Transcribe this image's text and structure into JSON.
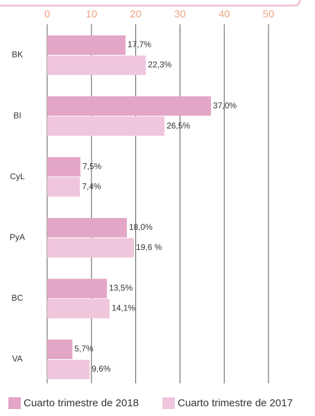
{
  "chart_data": {
    "type": "bar",
    "orientation": "horizontal",
    "categories": [
      "BK",
      "BI",
      "CyL",
      "PyA",
      "BC",
      "VA"
    ],
    "series": [
      {
        "name": "Cuarto trimestre de 2018",
        "color": "#e3a6c6",
        "values": [
          17.7,
          37.0,
          7.5,
          18.0,
          13.5,
          5.7
        ],
        "value_labels": [
          "17,7%",
          "37,0%",
          "7,5%",
          "18,0%",
          "13,5%",
          "5,7%"
        ]
      },
      {
        "name": "Cuarto trimestre de 2017",
        "color": "#f0c6dd",
        "values": [
          22.3,
          26.5,
          7.4,
          19.6,
          14.1,
          9.6
        ],
        "value_labels": [
          "22,3%",
          "26,5%",
          "7,4%",
          "19,6 %",
          "14,1%",
          "9,6%"
        ]
      }
    ],
    "xlim": [
      0,
      50
    ],
    "xticks": [
      0,
      10,
      20,
      30,
      40,
      50
    ],
    "grid": true,
    "legend": "bottom"
  }
}
